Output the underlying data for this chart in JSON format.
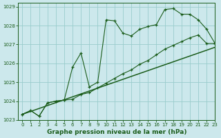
{
  "title": "Graphe pression niveau de la mer (hPa)",
  "bg_color": "#cce8ec",
  "grid_color": "#99cccc",
  "line_color": "#1a5c1a",
  "xlim": [
    -0.5,
    23
  ],
  "ylim": [
    1023,
    1029.2
  ],
  "yticks": [
    1023,
    1024,
    1025,
    1026,
    1027,
    1028,
    1029
  ],
  "xticks": [
    0,
    1,
    2,
    3,
    4,
    5,
    6,
    7,
    8,
    9,
    10,
    11,
    12,
    13,
    14,
    15,
    16,
    17,
    18,
    19,
    20,
    21,
    22,
    23
  ],
  "series1_x": [
    0,
    1,
    2,
    3,
    4,
    5,
    6,
    7,
    8,
    9,
    10,
    11,
    12,
    13,
    14,
    15,
    16,
    17,
    18,
    19,
    20,
    21,
    22,
    23
  ],
  "series1_y": [
    1023.3,
    1023.5,
    1023.2,
    1023.9,
    1024.0,
    1024.05,
    1025.8,
    1026.55,
    1024.75,
    1025.0,
    1028.3,
    1028.25,
    1027.6,
    1027.45,
    1027.8,
    1027.95,
    1028.05,
    1028.85,
    1028.9,
    1028.6,
    1028.6,
    1028.3,
    1027.8,
    1027.05
  ],
  "series2_x": [
    0,
    1,
    2,
    3,
    4,
    5,
    6,
    7,
    8,
    9,
    10,
    11,
    12,
    13,
    14,
    15,
    16,
    17,
    18,
    19,
    20,
    21,
    22,
    23
  ],
  "series2_y": [
    1023.3,
    1023.5,
    1023.2,
    1023.9,
    1024.0,
    1024.05,
    1024.1,
    1024.35,
    1024.45,
    1024.7,
    1024.95,
    1025.2,
    1025.45,
    1025.65,
    1025.95,
    1026.15,
    1026.45,
    1026.75,
    1026.95,
    1027.15,
    1027.35,
    1027.5,
    1027.05,
    1027.05
  ],
  "series3_x": [
    0,
    23
  ],
  "series3_y": [
    1023.3,
    1026.85
  ]
}
